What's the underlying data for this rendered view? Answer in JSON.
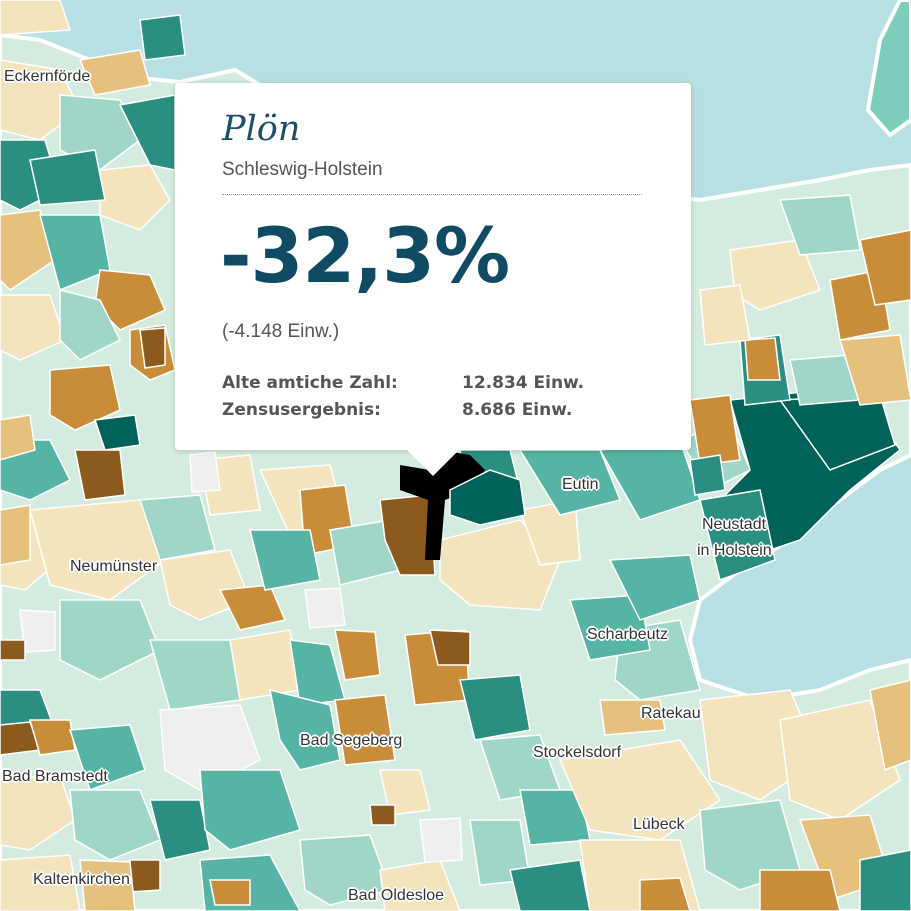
{
  "map": {
    "colors": {
      "water": "#b8dfe3",
      "coast": "#ffffff",
      "border": "#8a8a8a",
      "land_pale": "#f3e4bd",
      "land_light": "#d4ecdf",
      "teal_light": "#9fd6c8",
      "teal_mid": "#55b4a3",
      "teal_dark": "#2a8f81",
      "teal_deep": "#00635a",
      "ochre": "#e6c07d",
      "orange": "#c98d3a",
      "brown": "#8c5a1c",
      "selected": "#000000",
      "nodata": "#efefef"
    },
    "places": [
      "Eckernförde",
      "Eutin",
      "Neustadt",
      "in Holstein",
      "Neumünster",
      "Scharbeutz",
      "Ratekau",
      "Bad Segeberg",
      "Stockelsdorf",
      "Bad Bramstedt",
      "Lübeck",
      "Kaltenkirchen",
      "Bad Oldesloe"
    ]
  },
  "tooltip": {
    "name": "Plön",
    "state": "Schleswig-Holstein",
    "change_percent": "-32,3%",
    "change_abs": "(-4.148 Einw.)",
    "rows": [
      {
        "label": "Alte amtiche Zahl:",
        "value": "12.834 Einw."
      },
      {
        "label": "Zensusergebnis:",
        "value": "8.686 Einw."
      }
    ]
  }
}
